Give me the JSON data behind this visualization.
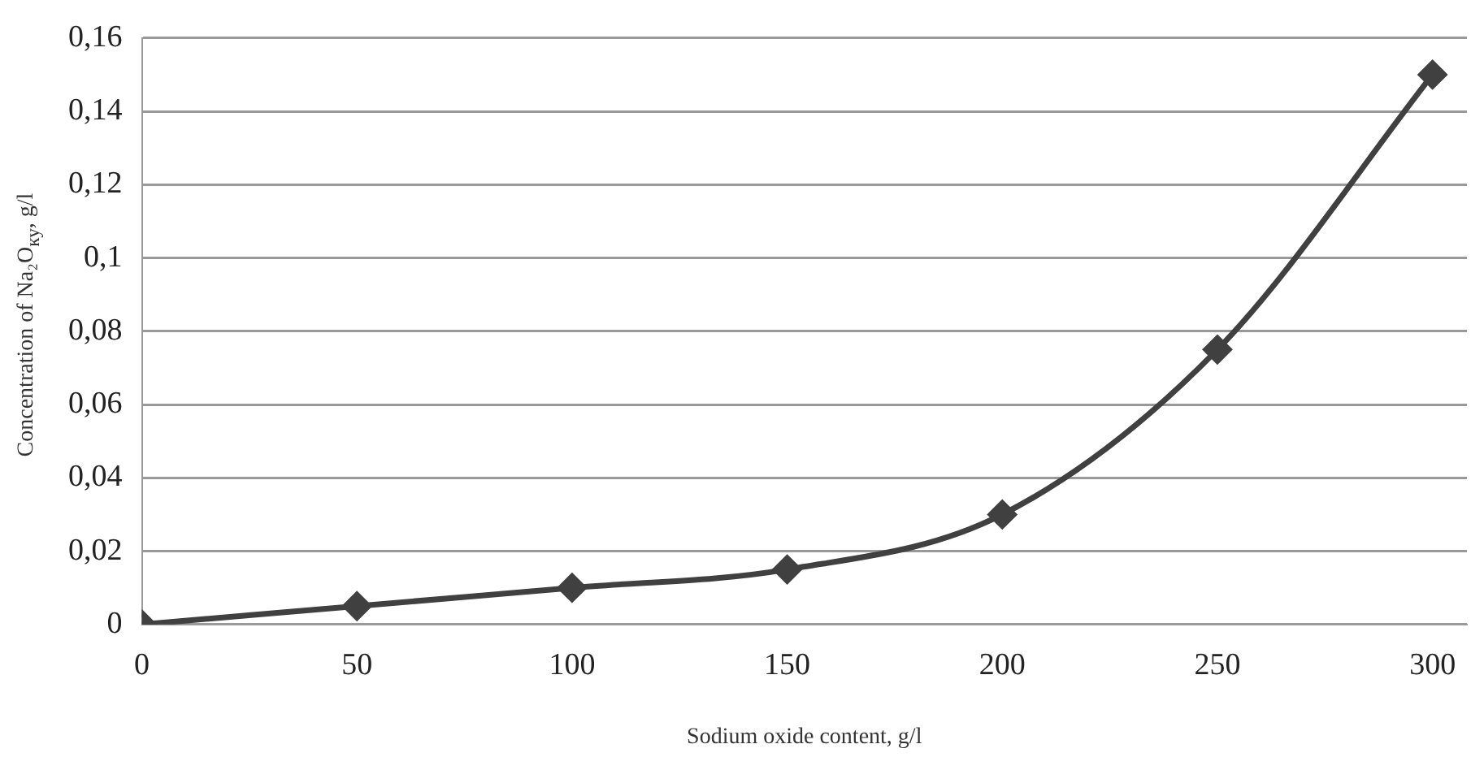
{
  "chart_data": {
    "type": "line",
    "xlabel": "Sodium oxide content, g/l",
    "ylabel": "Concentration of Na₂O$_{ку}$, g/l",
    "x": [
      0,
      50,
      100,
      150,
      200,
      250,
      300
    ],
    "series": [
      {
        "color": "#404040",
        "values": [
          0,
          0.005,
          0.01,
          0.015,
          0.03,
          0.075,
          0.15
        ]
      }
    ],
    "xlim": [
      0,
      308
    ],
    "xticks": [
      0,
      50,
      100,
      150,
      200,
      250,
      300
    ],
    "ylim": [
      0,
      0.16
    ],
    "yticks": [
      0,
      {
        "value": 0.02,
        "label": "0,02"
      },
      {
        "value": 0.04,
        "label": "0,04"
      },
      {
        "value": 0.06,
        "label": "0,06"
      },
      {
        "value": 0.08,
        "label": "0,08"
      },
      {
        "value": 0.1,
        "label": "0,1"
      },
      {
        "value": 0.12,
        "label": "0,12"
      },
      {
        "value": 0.14,
        "label": "0,14"
      },
      {
        "value": 0.16,
        "label": "0,16"
      }
    ],
    "grid": "y",
    "legend": false,
    "marker": "diamond",
    "line_style": "solid"
  }
}
